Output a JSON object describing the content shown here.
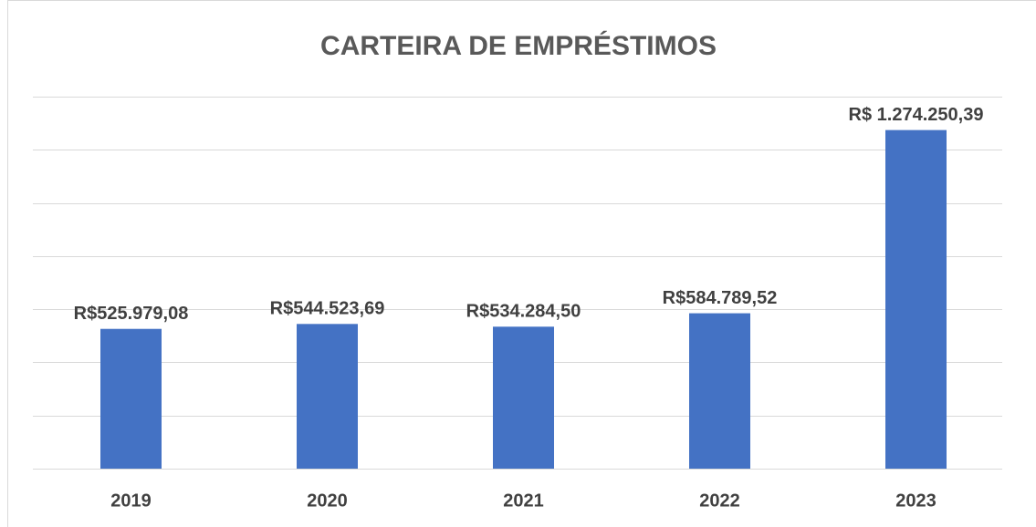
{
  "chart_data": {
    "type": "bar",
    "title": "CARTEIRA DE EMPRÉSTIMOS",
    "categories": [
      "2019",
      "2020",
      "2021",
      "2022",
      "2023"
    ],
    "values": [
      525979.08,
      544523.69,
      534284.5,
      584789.52,
      1274250.39
    ],
    "value_labels": [
      "R$525.979,08",
      "R$544.523,69",
      "R$534.284,50",
      "R$584.789,52",
      "R$ 1.274.250,39"
    ],
    "color": "#4472c4",
    "ylim": [
      0,
      1400000
    ],
    "yticks": [
      0,
      200000,
      400000,
      600000,
      800000,
      1000000,
      1200000,
      1400000
    ],
    "grid": true
  }
}
